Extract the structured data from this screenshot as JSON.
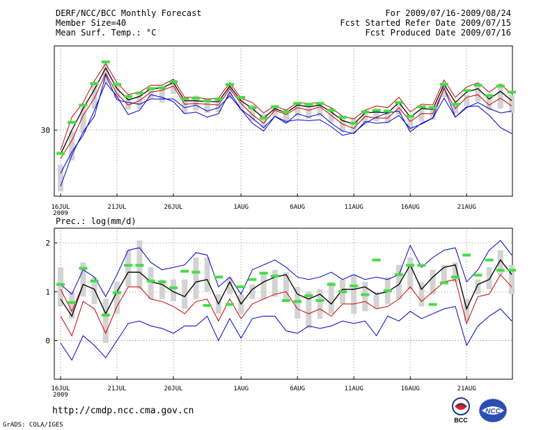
{
  "header": {
    "left": [
      "DERF/NCC/BCC Monthly Forecast",
      "Member Size=40",
      "Mean Surf. Temp.: °C"
    ],
    "right": [
      "For 2009/07/16-2009/08/24",
      "Fcst Started Refer Date 2009/07/15",
      "Fcst Produced Date 2009/07/16"
    ]
  },
  "footer": {
    "url": "http://cmdp.ncc.cma.gov.cn",
    "grads": "GrADS: COLA/IGES"
  },
  "logos": {
    "bcc": "BCC",
    "ncc": "NCC"
  },
  "colors": {
    "envelope": "#0000cc",
    "spread": "#cc0000",
    "mean": "#000000",
    "bar": "#d3d3d3",
    "marker": "#44dd44"
  },
  "chart_data": [
    {
      "type": "line",
      "title": "Mean Surf. Temp.: °C",
      "xlabel": "",
      "ylabel": "",
      "x_ticks": [
        "16JUL",
        "21JUL",
        "26JUL",
        "1AUG",
        "6AUG",
        "11AUG",
        "16AUG",
        "21AUG"
      ],
      "x_tick_index": [
        0,
        5,
        10,
        16,
        21,
        26,
        31,
        36
      ],
      "x_year_label": "2009",
      "y_ticks": [
        30
      ],
      "ylim": [
        22.35,
        39.75
      ],
      "series": [
        {
          "name": "max",
          "values": [
            25.0,
            27.5,
            29.4,
            32.3,
            35.5,
            33.9,
            31.8,
            32.3,
            34.1,
            33.8,
            33.3,
            31.9,
            32.1,
            31.5,
            31.9,
            34.4,
            32.4,
            30.8,
            29.9,
            31.6,
            31.0,
            31.2,
            31.1,
            31.2,
            30.4,
            29.4,
            29.7,
            30.8,
            31.5,
            32.0,
            32.2,
            29.8,
            30.8,
            31.4,
            34.9,
            31.5,
            32.7,
            32.8,
            31.7,
            30.3,
            29.6
          ],
          "color": "#0000cc"
        },
        {
          "name": "min",
          "values": [
            23.5,
            27.1,
            29.8,
            31.6,
            36.4,
            33.5,
            33.2,
            33.0,
            33.6,
            33.6,
            33.6,
            32.6,
            32.9,
            32.2,
            32.6,
            34.0,
            32.4,
            31.4,
            30.3,
            31.6,
            30.8,
            31.9,
            31.5,
            31.9,
            30.8,
            29.9,
            29.6,
            31.0,
            30.8,
            30.9,
            31.7,
            30.2,
            30.7,
            31.4,
            33.7,
            31.5,
            32.6,
            33.2,
            32.5,
            32.0,
            32.2
          ],
          "color": "#0000cc"
        },
        {
          "name": "upper",
          "values": [
            27.7,
            31.5,
            33.2,
            35.7,
            37.7,
            35.5,
            34.1,
            34.4,
            35.2,
            35.2,
            35.9,
            33.8,
            33.8,
            33.6,
            33.7,
            35.5,
            33.7,
            33.2,
            32.0,
            32.8,
            32.3,
            33.2,
            33.1,
            33.2,
            32.6,
            31.6,
            31.3,
            32.3,
            32.8,
            32.6,
            33.8,
            32.1,
            33.0,
            32.9,
            35.8,
            33.8,
            35.0,
            35.5,
            34.4,
            35.3,
            34.2
          ],
          "color": "#cc0000"
        },
        {
          "name": "lower",
          "values": [
            26.7,
            28.8,
            31.7,
            33.7,
            36.6,
            34.2,
            32.9,
            33.4,
            34.4,
            34.6,
            35.1,
            33.0,
            33.1,
            33.0,
            32.9,
            34.8,
            33.1,
            31.8,
            30.8,
            32.3,
            31.8,
            32.6,
            32.3,
            32.7,
            31.7,
            30.7,
            30.2,
            31.6,
            31.4,
            31.4,
            32.6,
            31.0,
            31.9,
            31.9,
            34.8,
            32.5,
            33.8,
            34.1,
            32.9,
            33.7,
            32.8
          ],
          "color": "#cc0000"
        },
        {
          "name": "mean",
          "values": [
            27.2,
            30.0,
            32.5,
            34.7,
            37.2,
            34.8,
            33.5,
            33.9,
            34.8,
            34.9,
            35.5,
            33.4,
            33.4,
            33.3,
            33.3,
            35.1,
            33.4,
            32.5,
            31.4,
            32.5,
            32.0,
            32.9,
            32.7,
            32.9,
            32.1,
            31.1,
            30.7,
            32.0,
            32.1,
            32.0,
            33.2,
            31.5,
            32.5,
            32.4,
            35.3,
            33.2,
            34.4,
            34.8,
            33.6,
            34.5,
            33.4
          ],
          "color": "#000000"
        }
      ],
      "bars": {
        "low": [
          22.9,
          26.5,
          29.7,
          32.5,
          35.4,
          33.7,
          32.4,
          32.4,
          33.7,
          33.2,
          34.2,
          31.9,
          32.3,
          32.0,
          32.1,
          33.6,
          32.2,
          31.1,
          30.2,
          31.5,
          30.8,
          31.6,
          31.3,
          31.6,
          30.8,
          29.8,
          29.8,
          30.9,
          31.0,
          30.8,
          31.8,
          30.1,
          31.0,
          31.2,
          33.8,
          31.9,
          32.8,
          33.3,
          32.3,
          32.5,
          32.0
        ],
        "high": [
          26.0,
          29.9,
          32.7,
          35.3,
          37.7,
          35.3,
          34.0,
          34.4,
          35.0,
          35.1,
          35.8,
          33.7,
          34.0,
          33.5,
          33.8,
          35.4,
          33.8,
          32.9,
          31.9,
          32.9,
          32.4,
          33.2,
          33.0,
          33.2,
          32.6,
          31.5,
          31.4,
          32.3,
          32.4,
          32.4,
          33.2,
          31.5,
          32.4,
          32.7,
          35.1,
          33.0,
          34.1,
          35.1,
          33.8,
          35.4,
          34.1
        ]
      },
      "markers": [
        27.3,
        30.9,
        32.9,
        35.4,
        37.9,
        35.3,
        33.9,
        34.3,
        34.8,
        34.9,
        35.6,
        33.6,
        33.7,
        33.4,
        33.6,
        35.3,
        33.8,
        32.6,
        31.4,
        32.7,
        32.1,
        33.1,
        33.0,
        33.1,
        32.3,
        31.5,
        30.8,
        32.1,
        32.3,
        32.2,
        33.2,
        31.6,
        32.7,
        32.6,
        35.3,
        33.0,
        34.6,
        35.2,
        34.0,
        35.1,
        34.4
      ]
    },
    {
      "type": "line",
      "title": "Prec.: log(mm/d)",
      "xlabel": "",
      "ylabel": "",
      "x_ticks": [
        "16JUL",
        "21JUL",
        "26JUL",
        "1AUG",
        "6AUG",
        "11AUG",
        "16AUG",
        "21AUG"
      ],
      "x_tick_index": [
        0,
        5,
        10,
        16,
        21,
        26,
        31,
        36
      ],
      "x_year_label": "2009",
      "y_ticks": [
        0,
        1,
        2
      ],
      "ylim": [
        -0.79,
        2.3
      ],
      "series": [
        {
          "name": "max",
          "values": [
            1.15,
            0.95,
            1.45,
            1.3,
            0.9,
            1.35,
            1.85,
            1.9,
            1.6,
            1.45,
            1.5,
            1.55,
            1.8,
            1.75,
            1.1,
            1.3,
            0.95,
            1.45,
            1.55,
            1.65,
            1.5,
            1.3,
            1.25,
            1.3,
            1.4,
            1.25,
            1.35,
            1.25,
            1.3,
            1.25,
            1.35,
            1.95,
            1.5,
            1.7,
            1.85,
            1.9,
            1.2,
            1.45,
            1.85,
            2.05,
            1.75
          ],
          "color": "#0000cc"
        },
        {
          "name": "min",
          "values": [
            -0.05,
            -0.4,
            0.1,
            -0.1,
            -0.35,
            0.0,
            0.35,
            0.4,
            0.3,
            0.25,
            0.15,
            0.3,
            0.3,
            0.5,
            0.0,
            0.45,
            0.05,
            0.45,
            0.5,
            0.5,
            0.2,
            0.15,
            0.3,
            0.25,
            0.3,
            0.4,
            0.35,
            0.4,
            0.1,
            0.5,
            0.4,
            0.6,
            0.45,
            0.55,
            0.65,
            0.7,
            -0.1,
            0.3,
            0.5,
            0.65,
            0.4
          ],
          "color": "#0000cc"
        },
        {
          "name": "upper",
          "values": [
            1.05,
            0.6,
            1.15,
            1.05,
            0.55,
            1.0,
            1.4,
            1.4,
            1.2,
            1.15,
            1.0,
            0.9,
            1.2,
            1.25,
            0.75,
            1.2,
            0.75,
            1.05,
            1.2,
            1.3,
            1.35,
            0.95,
            0.85,
            0.95,
            0.75,
            1.05,
            1.05,
            1.1,
            0.95,
            1.0,
            1.15,
            1.55,
            1.05,
            1.3,
            1.5,
            1.55,
            0.65,
            1.15,
            1.25,
            1.65,
            1.35
          ],
          "color": "#cc0000"
        },
        {
          "name": "lower",
          "values": [
            0.5,
            0.1,
            0.8,
            0.65,
            0.15,
            0.7,
            1.1,
            1.1,
            0.85,
            0.8,
            0.7,
            0.55,
            0.8,
            0.85,
            0.4,
            0.85,
            0.45,
            0.75,
            0.85,
            0.95,
            1.0,
            0.65,
            0.55,
            0.65,
            0.5,
            0.75,
            0.75,
            0.8,
            0.65,
            0.7,
            0.85,
            1.1,
            0.8,
            1.0,
            1.2,
            1.25,
            0.35,
            0.9,
            0.95,
            1.35,
            1.1
          ],
          "color": "#cc0000"
        },
        {
          "name": "mean",
          "values": [
            0.85,
            0.5,
            1.15,
            1.05,
            0.55,
            1.0,
            1.4,
            1.4,
            1.2,
            1.15,
            1.0,
            0.9,
            1.2,
            1.25,
            0.75,
            1.2,
            0.75,
            1.05,
            1.2,
            1.3,
            1.35,
            0.95,
            0.85,
            0.95,
            0.75,
            1.05,
            1.05,
            1.1,
            0.95,
            1.0,
            1.15,
            1.55,
            1.05,
            1.3,
            1.5,
            1.55,
            0.65,
            1.15,
            1.25,
            1.65,
            1.35
          ],
          "color": "#000000"
        }
      ],
      "bars": {
        "low": [
          0.7,
          0.45,
          0.9,
          0.75,
          -0.05,
          0.55,
          1.1,
          1.05,
          0.85,
          0.85,
          0.8,
          0.65,
          0.85,
          1.0,
          0.55,
          0.95,
          0.55,
          0.85,
          0.85,
          0.9,
          0.85,
          0.45,
          0.25,
          0.45,
          0.55,
          0.75,
          0.55,
          0.6,
          0.65,
          0.75,
          0.85,
          1.05,
          0.7,
          0.95,
          1.2,
          1.2,
          0.4,
          0.95,
          1.05,
          1.35,
          0.95
        ],
        "high": [
          1.5,
          1.0,
          1.6,
          1.3,
          0.85,
          1.2,
          1.85,
          2.05,
          1.5,
          1.25,
          1.25,
          1.25,
          1.7,
          1.7,
          0.95,
          1.3,
          0.95,
          1.15,
          1.35,
          1.45,
          1.4,
          1.1,
          1.0,
          1.05,
          1.2,
          1.25,
          1.35,
          1.2,
          1.0,
          1.3,
          1.55,
          1.7,
          1.2,
          1.45,
          1.55,
          1.6,
          0.85,
          1.25,
          1.5,
          1.85,
          1.55
        ]
      },
      "markers": [
        1.15,
        0.78,
        1.48,
        1.22,
        0.52,
        0.98,
        1.54,
        1.54,
        1.22,
        1.2,
        1.08,
        1.42,
        1.4,
        0.72,
        1.3,
        0.74,
        1.1,
        1.25,
        1.38,
        1.32,
        0.82,
        0.8,
        0.92,
        0.82,
        1.15,
        1.0,
        1.12,
        0.94,
        1.65,
        1.02,
        1.35,
        1.54,
        1.54,
        0.74,
        1.18,
        1.3,
        1.75,
        1.34,
        1.65,
        1.44,
        1.44
      ]
    }
  ]
}
